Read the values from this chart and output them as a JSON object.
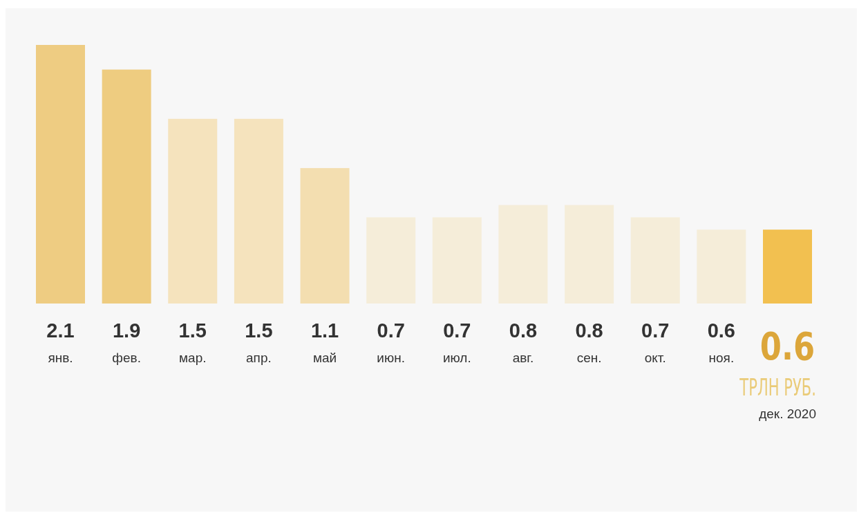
{
  "chart_data": {
    "type": "bar",
    "categories": [
      "янв.",
      "фев.",
      "мар.",
      "апр.",
      "май",
      "июн.",
      "июл.",
      "авг.",
      "сен.",
      "окт.",
      "ноя.",
      null
    ],
    "values": [
      2.1,
      1.9,
      1.5,
      1.5,
      1.1,
      0.7,
      0.7,
      0.8,
      0.8,
      0.7,
      0.6,
      0.6
    ],
    "colors": [
      "#eecc82",
      "#eecc80",
      "#f5e3bd",
      "#f5e3bd",
      "#f3deb0",
      "#f5edd9",
      "#f5edd9",
      "#f5edd9",
      "#f5edd9",
      "#f5edd9",
      "#f5edd9",
      "#f2c050"
    ],
    "data_labels": true,
    "annotations": [
      "ТРЛН РУБ.",
      "дек. 2020"
    ]
  }
}
